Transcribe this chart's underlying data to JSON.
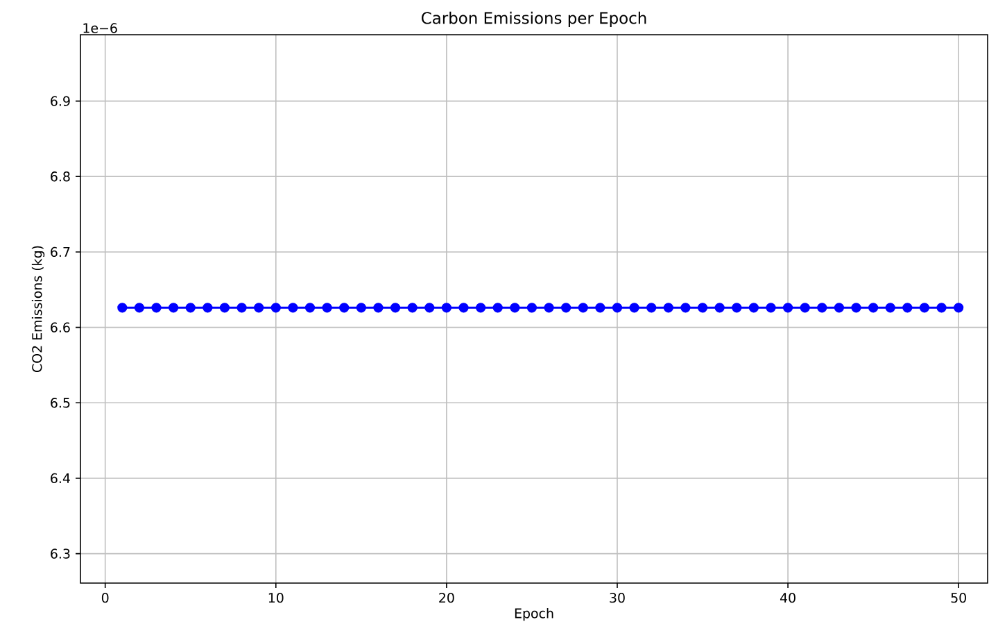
{
  "chart_data": {
    "type": "line",
    "title": "Carbon Emissions per Epoch",
    "xlabel": "Epoch",
    "ylabel": "CO2 Emissions (kg)",
    "x": [
      1,
      2,
      3,
      4,
      5,
      6,
      7,
      8,
      9,
      10,
      11,
      12,
      13,
      14,
      15,
      16,
      17,
      18,
      19,
      20,
      21,
      22,
      23,
      24,
      25,
      26,
      27,
      28,
      29,
      30,
      31,
      32,
      33,
      34,
      35,
      36,
      37,
      38,
      39,
      40,
      41,
      42,
      43,
      44,
      45,
      46,
      47,
      48,
      49,
      50
    ],
    "series": [
      {
        "color": "#0000ff",
        "values": [
          6.626,
          6.626,
          6.626,
          6.626,
          6.626,
          6.626,
          6.626,
          6.626,
          6.626,
          6.626,
          6.626,
          6.626,
          6.626,
          6.626,
          6.626,
          6.626,
          6.626,
          6.626,
          6.626,
          6.626,
          6.626,
          6.626,
          6.626,
          6.626,
          6.626,
          6.626,
          6.626,
          6.626,
          6.626,
          6.626,
          6.626,
          6.626,
          6.626,
          6.626,
          6.626,
          6.626,
          6.626,
          6.626,
          6.626,
          6.626,
          6.626,
          6.626,
          6.626,
          6.626,
          6.626,
          6.626,
          6.626,
          6.626,
          6.626,
          6.626
        ]
      }
    ],
    "xlim": [
      -1.45,
      51.7
    ],
    "ylim": [
      6.261,
      6.988
    ],
    "xticks": [
      0,
      10,
      20,
      30,
      40,
      50
    ],
    "yticks": [
      6.3,
      6.4,
      6.5,
      6.6,
      6.7,
      6.8,
      6.9
    ],
    "annotations": [
      "1e−6"
    ],
    "grid": true,
    "marker": "circle",
    "line_style": "solid"
  }
}
